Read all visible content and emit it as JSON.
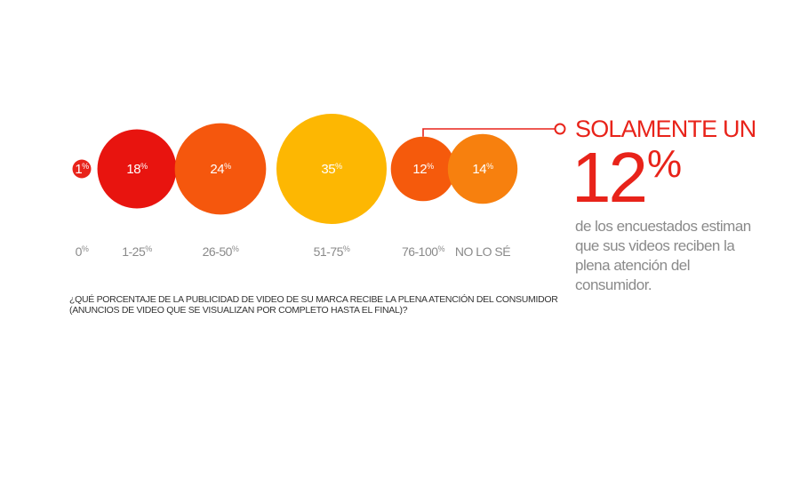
{
  "chart_data": {
    "type": "bubble",
    "categories": [
      "0%",
      "1-25%",
      "26-50%",
      "51-75%",
      "76-100%",
      "NO LO SÉ"
    ],
    "values": [
      1,
      18,
      24,
      35,
      12,
      14
    ],
    "value_labels": [
      "1%",
      "18%",
      "24%",
      "35%",
      "12%",
      "14%"
    ],
    "colors": [
      "#e8231a",
      "#e8140f",
      "#f5570d",
      "#fdb702",
      "#f55a0c",
      "#f7800e"
    ],
    "highlight_index": 4
  },
  "question": {
    "line1": "¿QUÉ PORCENTAJE DE LA PUBLICIDAD DE VIDEO DE SU MARCA RECIBE LA PLENA ATENCIÓN DEL CONSUMIDOR",
    "line2": "(ANUNCIOS DE VIDEO QUE SE VISUALIZAN POR COMPLETO HASTA EL FINAL)?"
  },
  "callout": {
    "title": "SOLAMENTE UN",
    "big_number": "12",
    "big_unit": "%",
    "description": "de los encuestados estiman que sus videos reciben la plena atención del consumidor.",
    "accent_color": "#e8231a",
    "marker": "ring-marker"
  }
}
